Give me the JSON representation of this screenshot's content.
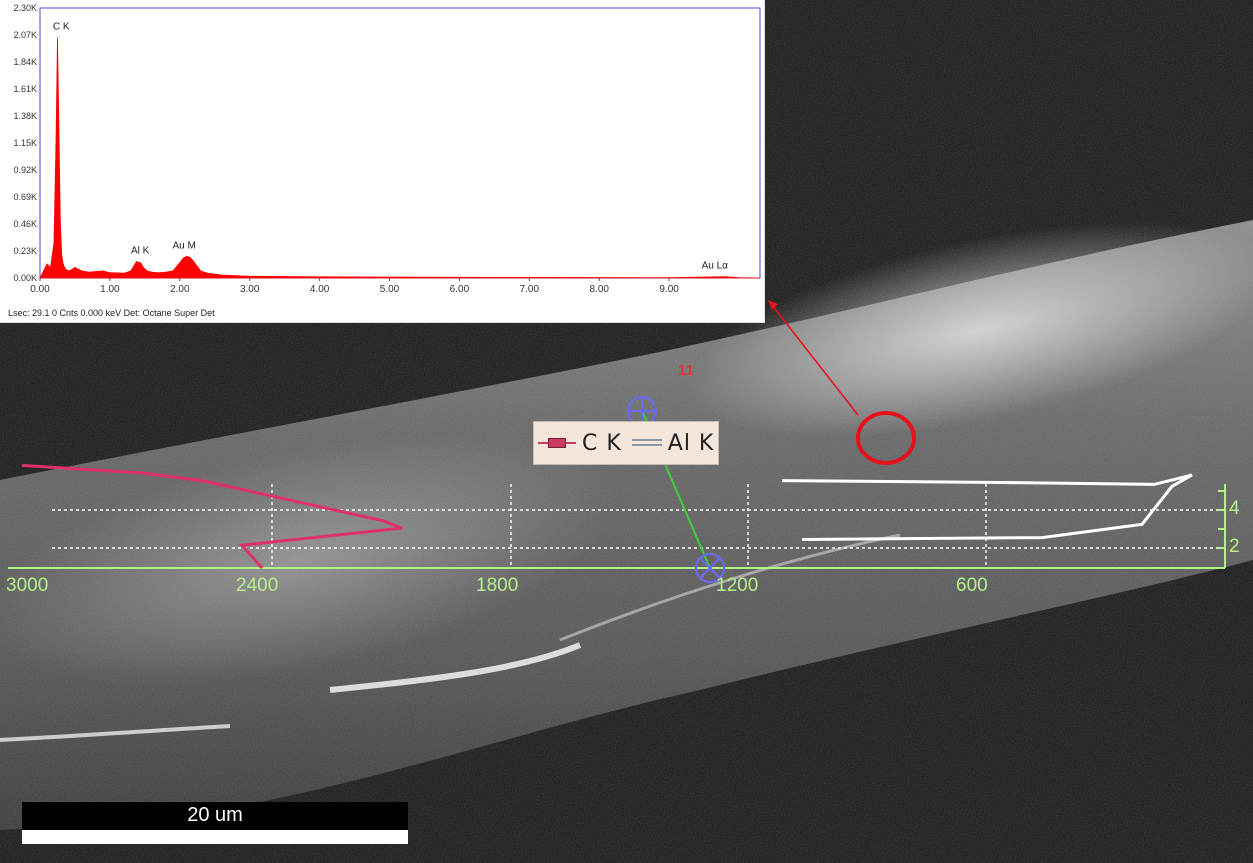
{
  "chart_data": [
    {
      "type": "line",
      "ylabel_ticks": [
        "0.00K",
        "0.23K",
        "0.46K",
        "0.69K",
        "0.92K",
        "1.15K",
        "1.38K",
        "1.61K",
        "1.84K",
        "2.07K",
        "2.30K"
      ],
      "xlabel_ticks": [
        "0.00",
        "1.00",
        "2.00",
        "3.00",
        "4.00",
        "5.00",
        "6.00",
        "7.00",
        "8.00",
        "9.00"
      ],
      "xlim": [
        0,
        10.3
      ],
      "ylim": [
        0,
        2300
      ],
      "series": [
        {
          "color": "#ff0000",
          "x": [
            0.0,
            0.05,
            0.1,
            0.15,
            0.2,
            0.23,
            0.25,
            0.27,
            0.29,
            0.31,
            0.33,
            0.36,
            0.4,
            0.45,
            0.5,
            0.6,
            0.7,
            0.8,
            0.9,
            1.0,
            1.1,
            1.2,
            1.3,
            1.38,
            1.44,
            1.48,
            1.53,
            1.6,
            1.7,
            1.8,
            1.9,
            2.0,
            2.05,
            2.1,
            2.15,
            2.2,
            2.25,
            2.3,
            2.4,
            2.6,
            3.0,
            4.0,
            5.0,
            6.0,
            7.0,
            8.0,
            9.0,
            9.8,
            10.0,
            10.3
          ],
          "y": [
            0,
            60,
            120,
            90,
            300,
            1200,
            2050,
            1300,
            500,
            200,
            120,
            80,
            60,
            70,
            90,
            60,
            50,
            55,
            60,
            45,
            45,
            40,
            60,
            140,
            130,
            90,
            60,
            50,
            45,
            50,
            60,
            130,
            170,
            185,
            175,
            140,
            100,
            60,
            40,
            25,
            15,
            10,
            8,
            6,
            5,
            4,
            3,
            12,
            3,
            0
          ]
        }
      ],
      "peaks": [
        {
          "label": "C  K",
          "x": 0.27,
          "y": 2050
        },
        {
          "label": "Al K",
          "x": 1.49,
          "y": 140
        },
        {
          "label": "Au M",
          "x": 2.12,
          "y": 185
        },
        {
          "label": "Au Lα",
          "x": 9.71,
          "y": 12
        }
      ]
    },
    {
      "type": "line",
      "x_ticks": [
        "3000",
        "2400",
        "1800",
        "1200",
        "600"
      ],
      "x_tick_values": [
        3000,
        2400,
        1800,
        1200,
        600
      ],
      "xlim": [
        3000,
        0
      ],
      "y_ticks": [
        "2",
        "4"
      ],
      "legend": [
        "C  K",
        "Al K"
      ],
      "series": [
        {
          "name": "C  K",
          "color": "#e0306a",
          "x": [
            3000,
            2700,
            2550,
            2100,
            2050,
            2450,
            2400
          ],
          "y": [
            5.4,
            5.0,
            4.6,
            2.5,
            2.1,
            1.2,
            0.0
          ]
        },
        {
          "name": "Al K",
          "color": "#ffffff",
          "x": [
            1100,
            550,
            170,
            130,
            75,
            125,
            200,
            450,
            1050
          ],
          "y": [
            4.6,
            4.5,
            4.4,
            4.6,
            4.9,
            4.3,
            2.3,
            1.6,
            1.5
          ]
        }
      ]
    }
  ],
  "spectrum": {
    "status_line": "Lsec: 29.1 0 Cnts  0.000 keV Det: Octane Super Det"
  },
  "annotation": {
    "point_number": "11"
  },
  "scale_bar": {
    "label": "20 um"
  },
  "colors": {
    "spectrum": "#ff0000",
    "axis_green": "#b4f08a",
    "marker_red": "#e8101a",
    "crosshair_blue": "#6a6aff"
  }
}
